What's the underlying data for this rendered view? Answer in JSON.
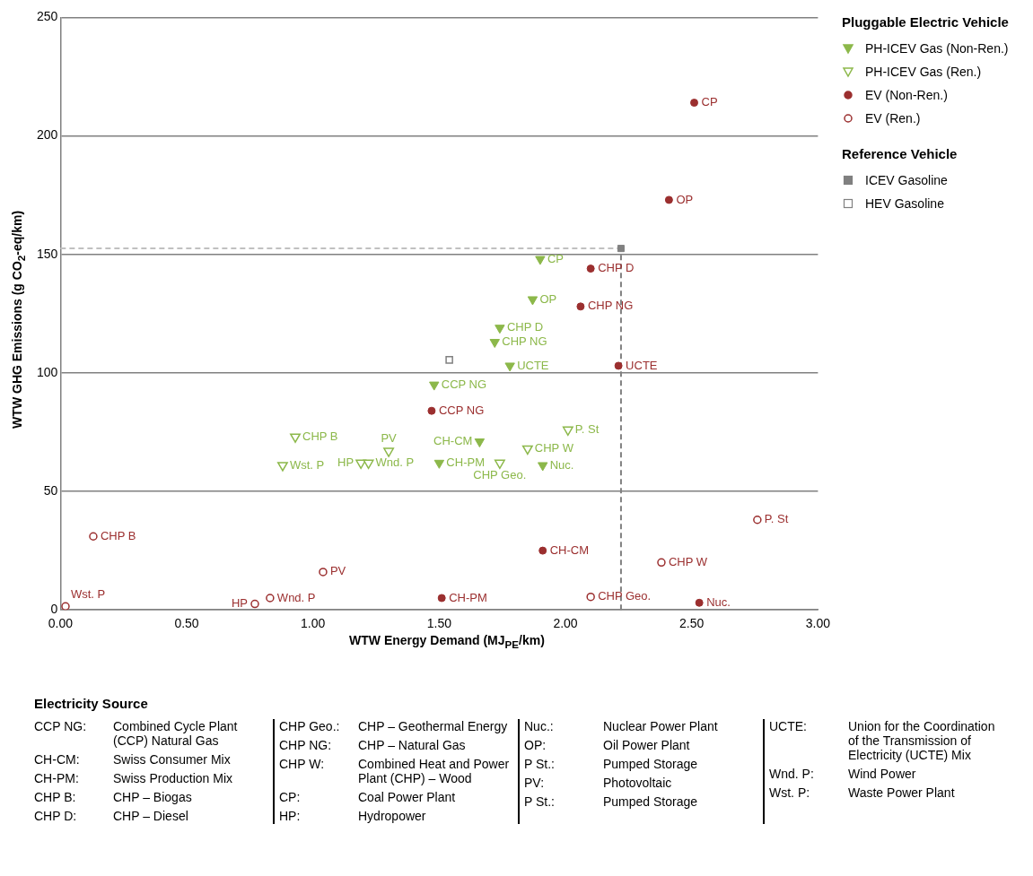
{
  "chart_data": {
    "type": "scatter",
    "xlabel": "WTW Energy Demand (MJ$_{PE}$/km)",
    "ylabel": "WTW GHG Emissions (g CO$_{2}$-eq/km)",
    "legend_title": "Pluggable Electric Vehicle",
    "legend": "right",
    "grid": "y",
    "xlim": [
      0,
      3
    ],
    "ylim": [
      0,
      250
    ],
    "xticks": [
      {
        "value": 0,
        "label": "0.00"
      },
      {
        "value": 0.5,
        "label": "0.50"
      },
      {
        "value": 1,
        "label": "1.00"
      },
      {
        "value": 1.5,
        "label": "1.50"
      },
      {
        "value": 2,
        "label": "2.00"
      },
      {
        "value": 2.5,
        "label": "2.50"
      },
      {
        "value": 3,
        "label": "3.00"
      }
    ],
    "yticks": [
      0,
      50,
      100,
      150,
      200,
      250
    ],
    "ref_lines": [
      {
        "axis": "y",
        "value": 152.5,
        "color": "#c0c0c0",
        "line_style": "dashed"
      },
      {
        "axis": "x",
        "value": 2.22,
        "color": "#808080",
        "line_style": "dashed"
      }
    ],
    "series": [
      {
        "name": "PH-ICEV Gas (Non-Ren.)",
        "color": "#8cb84a",
        "marker": "triangle_down",
        "x": [
          1.9,
          1.87,
          1.74,
          1.72,
          1.78,
          1.48,
          1.66,
          1.5,
          1.91
        ],
        "values": [
          148,
          131,
          119,
          113,
          103,
          95,
          71,
          62,
          61
        ]
      },
      {
        "name": "PH-ICEV Gas (Ren.)",
        "color": "#8cb84a",
        "marker": "triangle_down_open",
        "x": [
          0.93,
          0.88,
          1.19,
          1.22,
          1.3,
          1.74,
          1.85,
          2.01
        ],
        "values": [
          73,
          61,
          62,
          62,
          67,
          62,
          68,
          76
        ]
      },
      {
        "name": "EV (Non-Ren.)",
        "color": "#9b2f2f",
        "marker": "circle",
        "x": [
          2.51,
          2.41,
          2.1,
          2.06,
          2.21,
          1.47,
          1.91,
          1.51,
          2.53
        ],
        "values": [
          214,
          173,
          144,
          128,
          103,
          84,
          25,
          5,
          3
        ]
      },
      {
        "name": "EV (Ren.)",
        "color": "#9b2f2f",
        "marker": "circle_open",
        "x": [
          0.13,
          0.02,
          0.77,
          0.83,
          1.04,
          2.1,
          2.38,
          2.76
        ],
        "values": [
          31,
          1.5,
          2.5,
          5,
          16,
          5.5,
          20,
          38
        ]
      },
      {
        "name": "ICEV Gasoline",
        "color": "#808080",
        "marker": "square",
        "x": [
          2.22
        ],
        "values": [
          152.5
        ]
      },
      {
        "name": "HEV Gasoline",
        "color": "#808080",
        "marker": "square_open",
        "x": [
          1.54
        ],
        "values": [
          105.5
        ]
      }
    ],
    "annotations": [
      "Reference Vehicle",
      "Electricity Source",
      {
        "text": "CP",
        "x": 1.9,
        "y": 148
      },
      {
        "text": "OP",
        "x": 1.87,
        "y": 131
      },
      {
        "text": "CHP D",
        "x": 1.74,
        "y": 119
      },
      {
        "text": "CHP NG",
        "x": 1.72,
        "y": 113
      },
      {
        "text": "UCTE",
        "x": 1.78,
        "y": 103
      },
      {
        "text": "CCP NG",
        "x": 1.48,
        "y": 95
      },
      {
        "text": "CH-CM",
        "x": 1.66,
        "y": 71
      },
      {
        "text": "CH-PM",
        "x": 1.5,
        "y": 62
      },
      {
        "text": "Nuc.",
        "x": 1.91,
        "y": 61
      },
      {
        "text": "CHP B",
        "x": 0.93,
        "y": 73
      },
      {
        "text": "Wst. P",
        "x": 0.88,
        "y": 61
      },
      {
        "text": "HP",
        "x": 1.19,
        "y": 62
      },
      {
        "text": "Wnd. P",
        "x": 1.22,
        "y": 62
      },
      {
        "text": "PV",
        "x": 1.3,
        "y": 67
      },
      {
        "text": "CHP Geo.",
        "x": 1.74,
        "y": 62
      },
      {
        "text": "CHP W",
        "x": 1.85,
        "y": 68
      },
      {
        "text": "P. St",
        "x": 2.01,
        "y": 76
      },
      {
        "text": "CP",
        "x": 2.51,
        "y": 214
      },
      {
        "text": "OP",
        "x": 2.41,
        "y": 173
      },
      {
        "text": "CHP D",
        "x": 2.1,
        "y": 144
      },
      {
        "text": "CHP NG",
        "x": 2.06,
        "y": 128
      },
      {
        "text": "UCTE",
        "x": 2.21,
        "y": 103
      },
      {
        "text": "CCP NG",
        "x": 1.47,
        "y": 84
      },
      {
        "text": "CH-CM",
        "x": 1.91,
        "y": 25
      },
      {
        "text": "CH-PM",
        "x": 1.51,
        "y": 5
      },
      {
        "text": "Nuc.",
        "x": 2.53,
        "y": 3
      },
      {
        "text": "CHP B",
        "x": 0.13,
        "y": 31
      },
      {
        "text": "Wst. P",
        "x": 0.02,
        "y": 1.5
      },
      {
        "text": "HP",
        "x": 0.77,
        "y": 2.5
      },
      {
        "text": "Wnd. P",
        "x": 0.83,
        "y": 5
      },
      {
        "text": "PV",
        "x": 1.04,
        "y": 16
      },
      {
        "text": "CHP Geo.",
        "x": 2.1,
        "y": 5.5
      },
      {
        "text": "CHP W",
        "x": 2.38,
        "y": 20
      },
      {
        "text": "P. St",
        "x": 2.76,
        "y": 38
      },
      "CCP NG: Combined Cycle Plant (CCP) Natural Gas",
      "CH-CM: Swiss Consumer Mix",
      "CH-PM: Swiss Production Mix",
      "CHP B: CHP – Biogas",
      "CHP D: CHP – Diesel",
      "CHP Geo.: CHP – Geothermal Energy",
      "CHP NG: CHP – Natural Gas",
      "CHP W: Combined Heat and Power Plant (CHP) – Wood",
      "CP: Coal Power Plant",
      "HP: Hydropower",
      "Nuc.: Nuclear Power Plant",
      "OP: Oil Power Plant",
      "P St.: Pumped Storage",
      "PV: Photovoltaic",
      "P St.: Pumped Storage",
      "UCTE: Union for the Coordination of the Transmission  of Electricity (UCTE) Mix",
      "Wnd. P: Wind Power",
      "Wst. P: Waste Power Plant"
    ]
  }
}
